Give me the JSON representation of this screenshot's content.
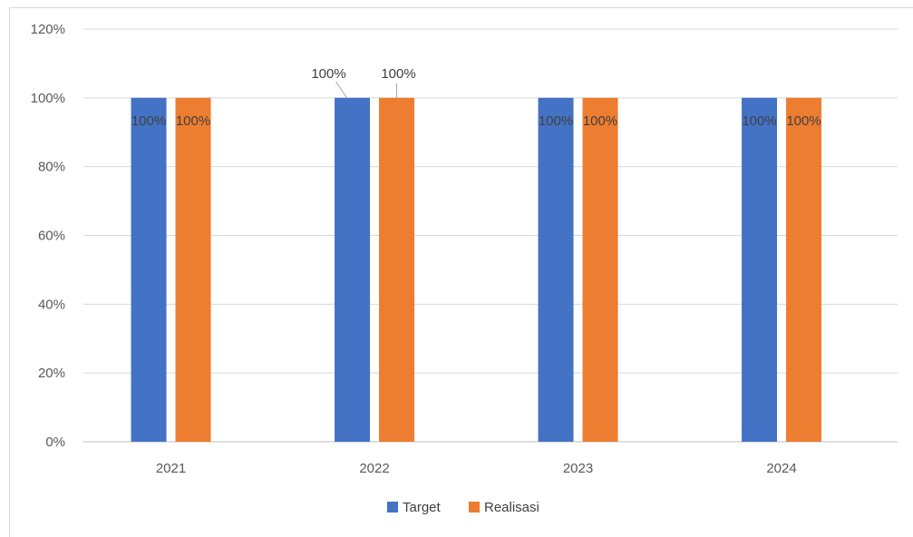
{
  "chart_data": {
    "type": "bar",
    "title": "",
    "xlabel": "",
    "ylabel": "",
    "categories": [
      "2021",
      "2022",
      "2023",
      "2024"
    ],
    "series": [
      {
        "name": "Target",
        "color": "#4472C4",
        "values": [
          100,
          100,
          100,
          100
        ],
        "labels": [
          "100%",
          "100%",
          "100%",
          "100%"
        ]
      },
      {
        "name": "Realisasi",
        "color": "#ED7D31",
        "values": [
          100,
          100,
          100,
          100
        ],
        "labels": [
          "100%",
          "100%",
          "100%",
          "100%"
        ]
      }
    ],
    "ylim": [
      0,
      120
    ],
    "yticks": [
      0,
      20,
      40,
      60,
      80,
      100,
      120
    ],
    "ytick_labels": [
      "0%",
      "20%",
      "40%",
      "60%",
      "80%",
      "100%",
      "120%"
    ],
    "grid": true,
    "legend_position": "bottom",
    "gridline_color": "#d9d9d9"
  }
}
